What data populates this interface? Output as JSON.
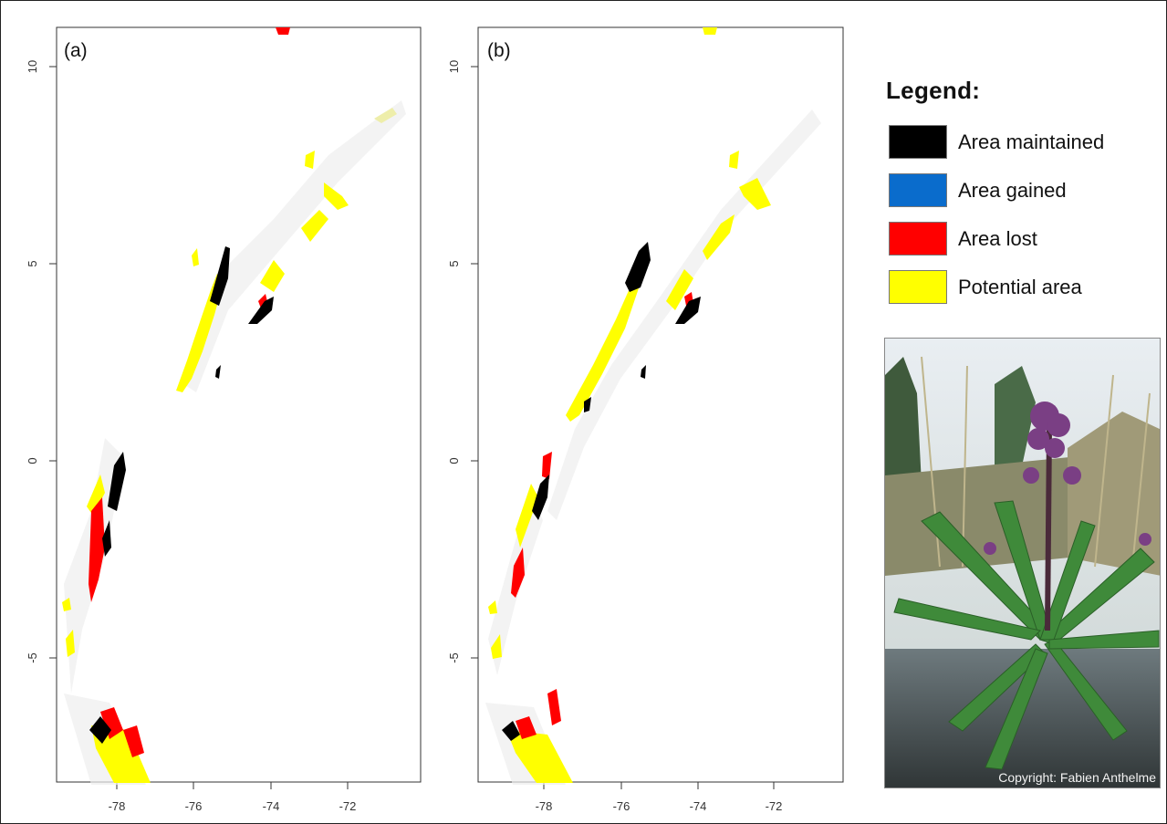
{
  "maps": [
    {
      "panel_label": "(a)"
    },
    {
      "panel_label": "(b)"
    }
  ],
  "axes": {
    "x_ticks": [
      "-78",
      "-76",
      "-74",
      "-72"
    ],
    "y_ticks": [
      "10",
      "5",
      "0",
      "-5"
    ]
  },
  "legend": {
    "title": "Legend:",
    "items": [
      {
        "label": "Area maintained",
        "color": "#000000"
      },
      {
        "label": "Area gained",
        "color": "#0a6ccc"
      },
      {
        "label": "Area lost",
        "color": "#ff0000"
      },
      {
        "label": "Potential area",
        "color": "#ffff00"
      }
    ]
  },
  "photo": {
    "subject": "flowering-plant-photo",
    "credit": "Copyright: Fabien Anthelme"
  }
}
